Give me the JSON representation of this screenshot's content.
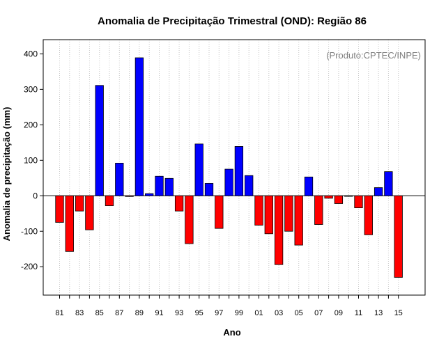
{
  "chart_data": {
    "type": "bar",
    "title": "Anomalia de Precipitação Trimestral (OND): Região 86",
    "xlabel": "Ano",
    "ylabel": "Anomalia de precipitação (mm)",
    "annotation": "(Produto:CPTEC/INPE)",
    "ylim": [
      -280,
      440
    ],
    "yticks": [
      -200,
      -100,
      0,
      100,
      200,
      300,
      400
    ],
    "grid": "vertical dotted",
    "colors": {
      "positive": "#0000ff",
      "negative": "#ff0000",
      "edge": "#000000",
      "grid": "#c8c8c8",
      "zero_line": "#000000"
    },
    "categories": [
      "81",
      "82",
      "83",
      "84",
      "85",
      "86",
      "87",
      "88",
      "89",
      "90",
      "91",
      "92",
      "93",
      "94",
      "95",
      "96",
      "97",
      "98",
      "99",
      "00",
      "01",
      "02",
      "03",
      "04",
      "05",
      "06",
      "07",
      "08",
      "09",
      "10",
      "11",
      "12",
      "13",
      "14",
      "15"
    ],
    "xtick_labels": [
      "81",
      "83",
      "85",
      "87",
      "89",
      "91",
      "93",
      "95",
      "97",
      "99",
      "01",
      "03",
      "05",
      "07",
      "09",
      "11",
      "13",
      "15"
    ],
    "values": [
      -75,
      -157,
      -43,
      -96,
      311,
      -28,
      92,
      -2,
      389,
      6,
      55,
      49,
      -43,
      -135,
      146,
      35,
      -92,
      75,
      139,
      57,
      -83,
      -107,
      -194,
      -100,
      -139,
      53,
      -81,
      -7,
      -22,
      0,
      -34,
      -110,
      23,
      68,
      -230
    ]
  }
}
